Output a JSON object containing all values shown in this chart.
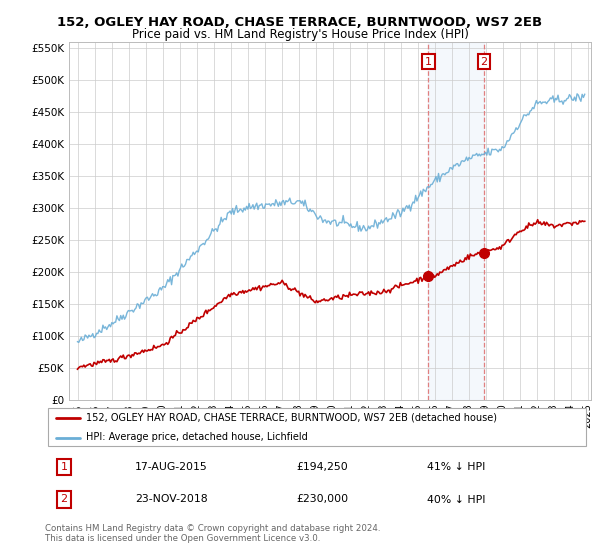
{
  "title": "152, OGLEY HAY ROAD, CHASE TERRACE, BURNTWOOD, WS7 2EB",
  "subtitle": "Price paid vs. HM Land Registry's House Price Index (HPI)",
  "legend_line1": "152, OGLEY HAY ROAD, CHASE TERRACE, BURNTWOOD, WS7 2EB (detached house)",
  "legend_line2": "HPI: Average price, detached house, Lichfield",
  "sale1_date": "17-AUG-2015",
  "sale1_price": "£194,250",
  "sale1_hpi": "41% ↓ HPI",
  "sale2_date": "23-NOV-2018",
  "sale2_price": "£230,000",
  "sale2_hpi": "40% ↓ HPI",
  "footer": "Contains HM Land Registry data © Crown copyright and database right 2024.\nThis data is licensed under the Open Government Licence v3.0.",
  "hpi_color": "#6aaed6",
  "price_color": "#c00000",
  "sale1_x": 2015.63,
  "sale2_x": 2018.9,
  "sale1_y": 194250,
  "sale2_y": 230000,
  "ylim": [
    0,
    560000
  ],
  "xlim_start": 1994.5,
  "xlim_end": 2025.2
}
